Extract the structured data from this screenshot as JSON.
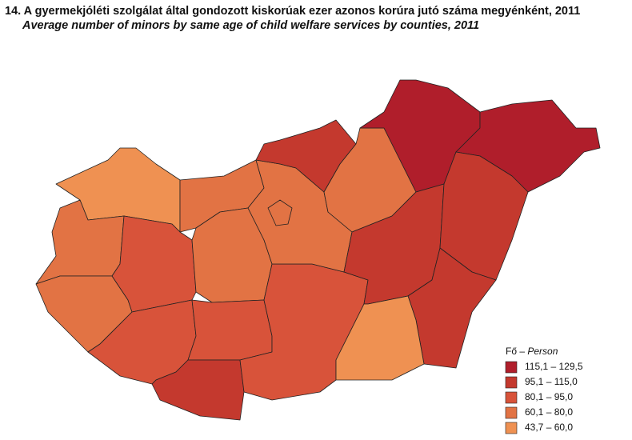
{
  "header": {
    "title": "14. A gyermekjóléti szolgálat által gondozott kiskorúak ezer azonos korúra jutó száma megyénként, 2011",
    "subtitle": "Average number of minors by same age of child welfare services by counties, 2011"
  },
  "legend": {
    "title": "Fő –",
    "title_italic": "Person",
    "items": [
      {
        "label": "115,1 – 129,5",
        "color": "#b01e2b"
      },
      {
        "label": "95,1 – 115,0",
        "color": "#c4392e"
      },
      {
        "label": "80,1 – 95,0",
        "color": "#d8533a"
      },
      {
        "label": "60,1 – 80,0",
        "color": "#e27344"
      },
      {
        "label": "43,7 – 60,0",
        "color": "#ef9152"
      }
    ]
  }
}
